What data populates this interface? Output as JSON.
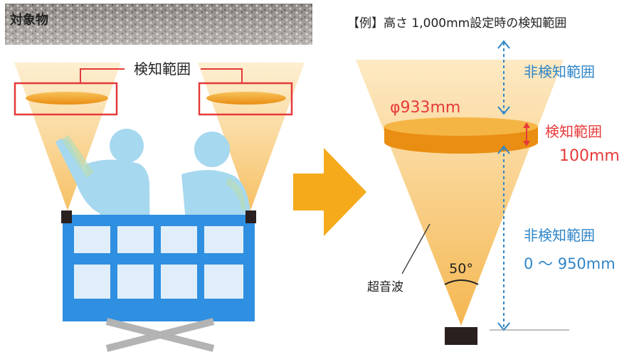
{
  "left_panel": {
    "target_label": "対象物",
    "range_label": "検知範囲"
  },
  "right_panel": {
    "title": "【例】高さ 1,000mm設定時の検知範囲",
    "diameter_label": "φ933mm",
    "upper_non_detect_label": "非検知範囲",
    "detect_label": "検知範囲",
    "detect_size_label": "100mm",
    "lower_non_detect_label": "非検知範囲",
    "lower_range_label": "0 〜 950mm",
    "angle_label": "50°",
    "ultrasonic_label": "超音波"
  },
  "colors": {
    "blue_label": "#2f86c8",
    "red_label": "#e83a3a",
    "frame_blue": "#2f8fe0",
    "person_blue": "#a6d8ef",
    "ellipse_orange": "#f0a01e",
    "arrow_orange": "#f5aa1c"
  }
}
